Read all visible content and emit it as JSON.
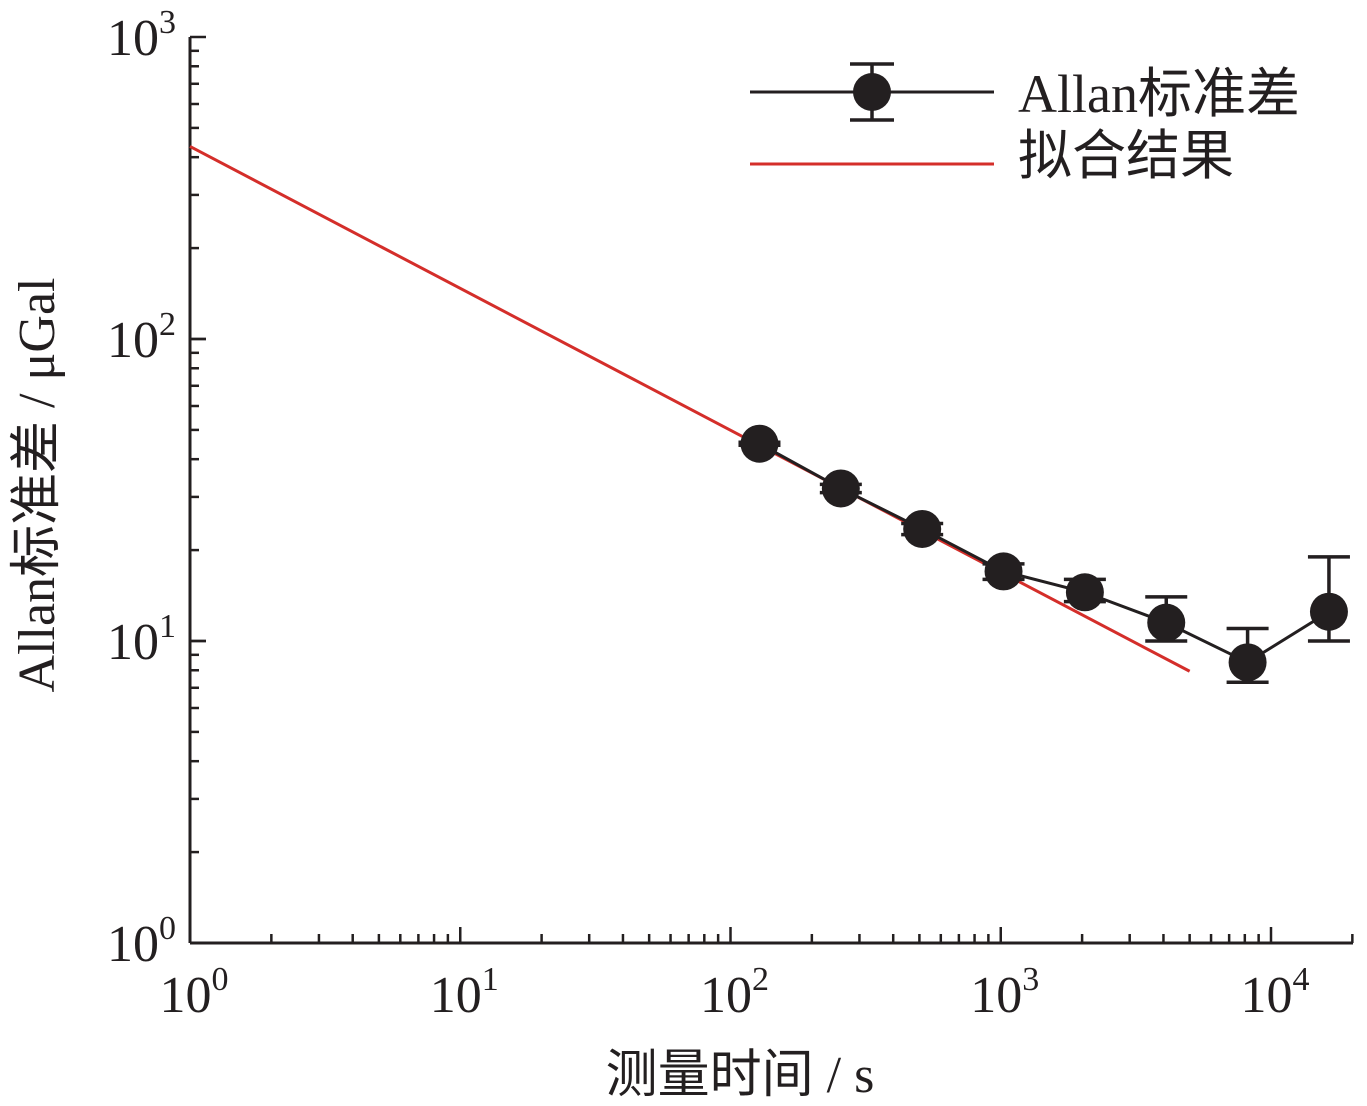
{
  "chart_data": {
    "type": "scatter",
    "title": "",
    "xlabel": "测量时间 / s",
    "ylabel": "Allan标准差 / μGal",
    "x_scale": "log",
    "y_scale": "log",
    "xlim": [
      1,
      22000
    ],
    "ylim": [
      1,
      1000
    ],
    "grid": false,
    "legend_position": "top-right",
    "x_ticks": [
      {
        "value": 1,
        "base": "10",
        "exp": "0"
      },
      {
        "value": 10,
        "base": "10",
        "exp": "1"
      },
      {
        "value": 100,
        "base": "10",
        "exp": "2"
      },
      {
        "value": 1000,
        "base": "10",
        "exp": "3"
      },
      {
        "value": 10000,
        "base": "10",
        "exp": "4"
      }
    ],
    "y_ticks": [
      {
        "value": 1,
        "base": "10",
        "exp": "0"
      },
      {
        "value": 10,
        "base": "10",
        "exp": "1"
      },
      {
        "value": 100,
        "base": "10",
        "exp": "2"
      },
      {
        "value": 1000,
        "base": "10",
        "exp": "3"
      }
    ],
    "series": [
      {
        "name": "Allan标准差",
        "color": "#231f20",
        "marker": "filled-circle",
        "points": [
          {
            "x": 128,
            "y": 45,
            "ylow": 44.5,
            "yhigh": 45.5
          },
          {
            "x": 256,
            "y": 32,
            "ylow": 31,
            "yhigh": 33
          },
          {
            "x": 512,
            "y": 23.5,
            "ylow": 22.5,
            "yhigh": 24.5
          },
          {
            "x": 1024,
            "y": 17,
            "ylow": 16,
            "yhigh": 18
          },
          {
            "x": 2048,
            "y": 14.5,
            "ylow": 13.5,
            "yhigh": 16
          },
          {
            "x": 4096,
            "y": 11.5,
            "ylow": 10,
            "yhigh": 14
          },
          {
            "x": 8192,
            "y": 8.5,
            "ylow": 7.3,
            "yhigh": 11
          },
          {
            "x": 16384,
            "y": 12.5,
            "ylow": 10,
            "yhigh": 19
          }
        ]
      },
      {
        "name": "拟合结果",
        "color": "#d42e2a",
        "type": "line",
        "x": [
          1,
          5000
        ],
        "y": [
          434,
          7.94
        ]
      }
    ]
  }
}
